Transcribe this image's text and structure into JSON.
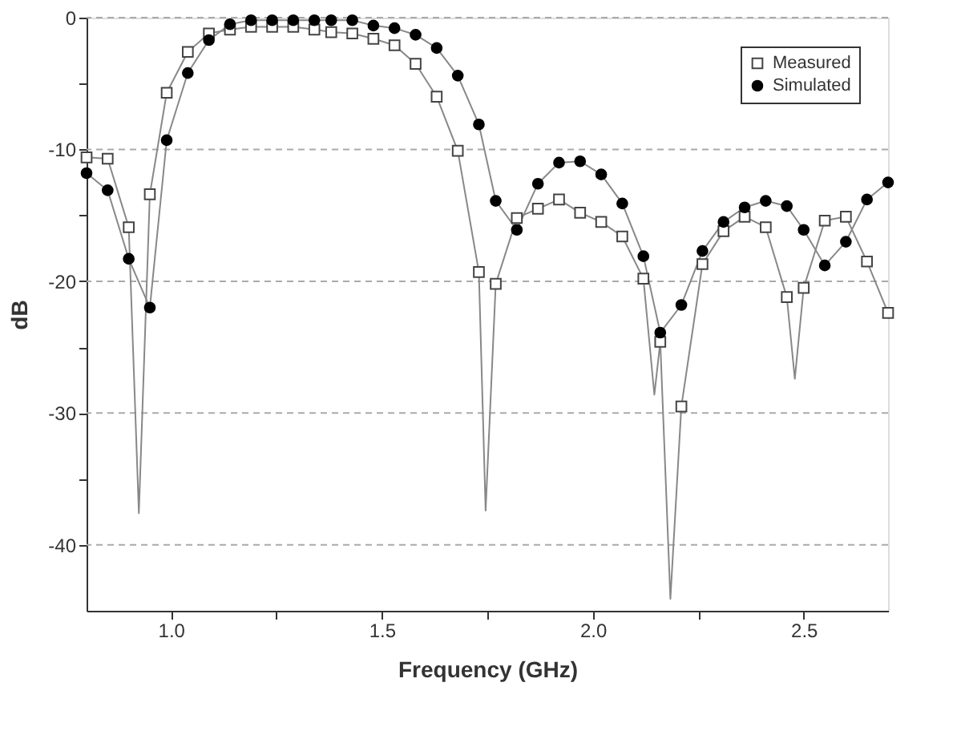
{
  "chart_data": {
    "type": "line",
    "xlabel": "Frequency (GHz)",
    "ylabel": "dB",
    "xlim": [
      0.8,
      2.7
    ],
    "ylim": [
      -45,
      0
    ],
    "xticks": [
      {
        "value": 1,
        "label": "1.0"
      },
      {
        "value": 1.25,
        "label": null
      },
      {
        "value": 1.5,
        "label": "1.5"
      },
      {
        "value": 1.75,
        "label": null
      },
      {
        "value": 2,
        "label": "2.0"
      },
      {
        "value": 2.25,
        "label": null
      },
      {
        "value": 2.5,
        "label": "2.5"
      }
    ],
    "yticks": [
      0,
      {
        "value": -5,
        "label": null
      },
      -10,
      {
        "value": -15,
        "label": null
      },
      -20,
      {
        "value": -25,
        "label": null
      },
      -30,
      {
        "value": -35,
        "label": null
      },
      -40
    ],
    "grid": "y",
    "legend": "top right",
    "series": [
      {
        "color": "#888888",
        "marker": "none",
        "line_style": "solid",
        "x": [
          0.8,
          0.85,
          0.9,
          0.924,
          0.95,
          0.99,
          1.04,
          1.09,
          1.14,
          1.19,
          1.24,
          1.29,
          1.34,
          1.38,
          1.43,
          1.48,
          1.53,
          1.58,
          1.63,
          1.68,
          1.73,
          1.746,
          1.77,
          1.82,
          1.87,
          1.92,
          1.97,
          2.02,
          2.07,
          2.12,
          2.146,
          2.16,
          2.184,
          2.21,
          2.26,
          2.31,
          2.36,
          2.41,
          2.46,
          2.479,
          2.5,
          2.55,
          2.6,
          2.65,
          2.7
        ],
        "values": [
          -10.6,
          -10.7,
          -15.9,
          -37.6,
          -13.4,
          -5.7,
          -2.6,
          -1.2,
          -0.9,
          -0.7,
          -0.7,
          -0.7,
          -0.9,
          -1.1,
          -1.2,
          -1.6,
          -2.1,
          -3.5,
          -6.0,
          -10.1,
          -19.3,
          -37.4,
          -20.2,
          -15.2,
          -14.5,
          -13.8,
          -14.8,
          -15.5,
          -16.6,
          -19.8,
          -28.6,
          -24.6,
          -44.1,
          -29.5,
          -18.7,
          -16.2,
          -15.1,
          -15.9,
          -21.2,
          -27.4,
          -20.5,
          -15.4,
          -15.1,
          -18.5,
          -22.4
        ]
      },
      {
        "color": "#888888",
        "marker": "none",
        "line_style": "solid",
        "x": [
          0.8,
          0.85,
          0.9,
          0.95,
          0.99,
          1.04,
          1.09,
          1.14,
          1.19,
          1.24,
          1.29,
          1.34,
          1.38,
          1.43,
          1.48,
          1.53,
          1.58,
          1.63,
          1.68,
          1.73,
          1.77,
          1.82,
          1.87,
          1.92,
          1.97,
          2.02,
          2.07,
          2.12,
          2.16,
          2.21,
          2.26,
          2.31,
          2.36,
          2.41,
          2.46,
          2.5,
          2.55,
          2.6,
          2.65,
          2.7
        ],
        "values": [
          -11.8,
          -13.1,
          -18.3,
          -22.0,
          -9.3,
          -4.2,
          -1.7,
          -0.5,
          -0.2,
          -0.2,
          -0.2,
          -0.2,
          -0.2,
          -0.2,
          -0.6,
          -0.8,
          -1.3,
          -2.3,
          -4.4,
          -8.1,
          -13.9,
          -16.1,
          -12.6,
          -11.0,
          -10.9,
          -11.9,
          -14.1,
          -18.1,
          -23.9,
          -21.8,
          -17.7,
          -15.5,
          -14.4,
          -13.9,
          -14.3,
          -16.1,
          -18.8,
          -17.0,
          -13.8,
          -12.5
        ]
      },
      {
        "type": "scatter",
        "name": "Measured",
        "color": "#444444",
        "marker": "square",
        "x": [
          0.8,
          0.85,
          0.9,
          0.95,
          0.99,
          1.04,
          1.09,
          1.14,
          1.19,
          1.24,
          1.29,
          1.34,
          1.38,
          1.43,
          1.48,
          1.53,
          1.58,
          1.63,
          1.68,
          1.73,
          1.77,
          1.82,
          1.87,
          1.92,
          1.97,
          2.02,
          2.07,
          2.12,
          2.16,
          2.21,
          2.26,
          2.31,
          2.36,
          2.41,
          2.46,
          2.5,
          2.55,
          2.6,
          2.65,
          2.7
        ],
        "values": [
          -10.6,
          -10.7,
          -15.9,
          -13.4,
          -5.7,
          -2.6,
          -1.2,
          -0.9,
          -0.7,
          -0.7,
          -0.7,
          -0.9,
          -1.1,
          -1.2,
          -1.6,
          -2.1,
          -3.5,
          -6.0,
          -10.1,
          -19.3,
          -20.2,
          -15.2,
          -14.5,
          -13.8,
          -14.8,
          -15.5,
          -16.6,
          -19.8,
          -24.6,
          -29.5,
          -18.7,
          -16.2,
          -15.1,
          -15.9,
          -21.2,
          -20.5,
          -15.4,
          -15.1,
          -18.5,
          -22.4
        ]
      },
      {
        "type": "scatter",
        "name": "Simulated",
        "color": "#000000",
        "marker": "circle",
        "x": [
          0.8,
          0.85,
          0.9,
          0.95,
          0.99,
          1.04,
          1.09,
          1.14,
          1.19,
          1.24,
          1.29,
          1.34,
          1.38,
          1.43,
          1.48,
          1.53,
          1.58,
          1.63,
          1.68,
          1.73,
          1.77,
          1.82,
          1.87,
          1.92,
          1.97,
          2.02,
          2.07,
          2.12,
          2.16,
          2.21,
          2.26,
          2.31,
          2.36,
          2.41,
          2.46,
          2.5,
          2.55,
          2.6,
          2.65,
          2.7
        ],
        "values": [
          -11.8,
          -13.1,
          -18.3,
          -22.0,
          -9.3,
          -4.2,
          -1.7,
          -0.5,
          -0.2,
          -0.2,
          -0.2,
          -0.2,
          -0.2,
          -0.2,
          -0.6,
          -0.8,
          -1.3,
          -2.3,
          -4.4,
          -8.1,
          -13.9,
          -16.1,
          -12.6,
          -11.0,
          -10.9,
          -11.9,
          -14.1,
          -18.1,
          -23.9,
          -21.8,
          -17.7,
          -15.5,
          -14.4,
          -13.9,
          -14.3,
          -16.1,
          -18.8,
          -17.0,
          -13.8,
          -12.5
        ]
      }
    ]
  }
}
